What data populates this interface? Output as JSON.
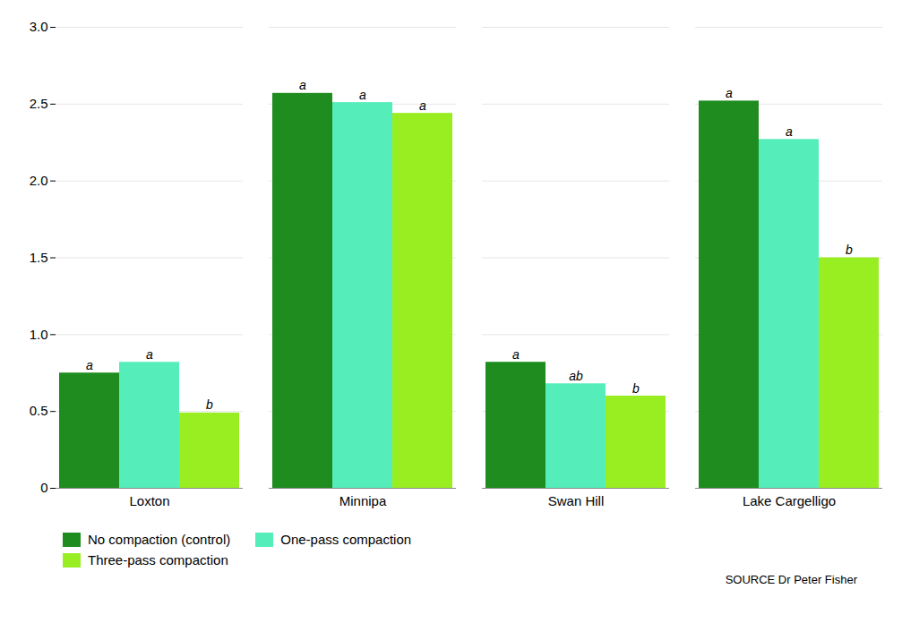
{
  "chart_data": {
    "type": "bar",
    "categories": [
      "Loxton",
      "Minnipa",
      "Swan Hill",
      "Lake Cargelligo"
    ],
    "series": [
      {
        "name": "No compaction (control)",
        "color": "#1e8c1e",
        "values": [
          0.75,
          2.57,
          0.82,
          2.52
        ],
        "letters": [
          "a",
          "a",
          "a",
          "a"
        ]
      },
      {
        "name": "One-pass compaction",
        "color": "#55eebb",
        "values": [
          0.82,
          2.51,
          0.68,
          2.27
        ],
        "letters": [
          "a",
          "a",
          "ab",
          "a"
        ]
      },
      {
        "name": "Three-pass compaction",
        "color": "#99ee22",
        "values": [
          0.49,
          2.44,
          0.6,
          1.5
        ],
        "letters": [
          "b",
          "a",
          "b",
          "b"
        ]
      }
    ],
    "ylim": [
      0,
      3.0
    ],
    "yticks": [
      0,
      0.5,
      {
        "value": 1.0,
        "label": "1.0"
      },
      1.5,
      {
        "value": 2.0,
        "label": "2.0"
      },
      2.5,
      {
        "value": 3.0,
        "label": "3.0"
      }
    ],
    "grid": true,
    "legend": "bottom",
    "caption": "SOURCE Dr Peter Fisher"
  }
}
